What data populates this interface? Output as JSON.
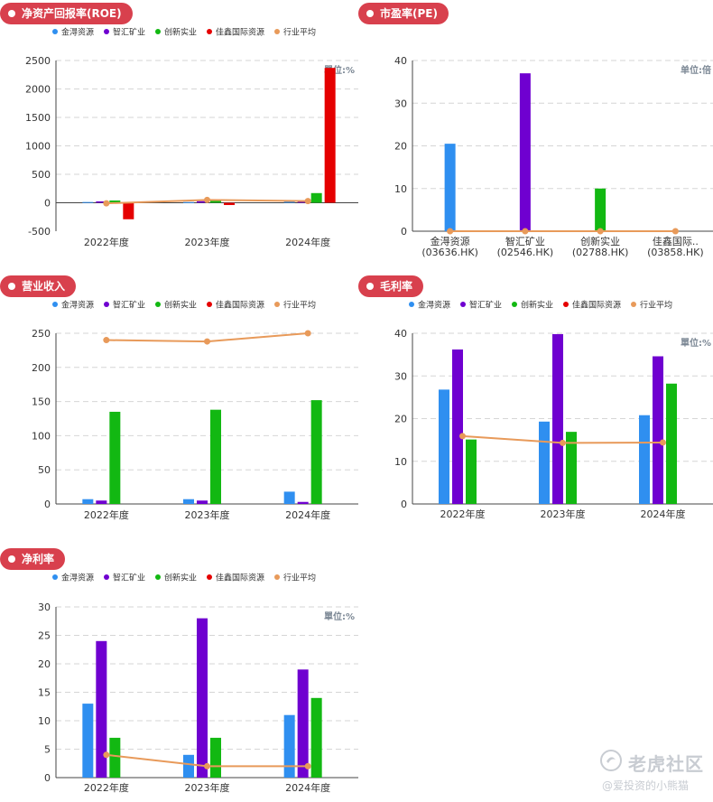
{
  "colors": {
    "金淂资源": "#2f8ff0",
    "智汇矿业": "#6f00d0",
    "创新实业": "#12b812",
    "佳鑫国际资源": "#e50000",
    "行业平均": "#e89a5a",
    "pill": "#d8404d"
  },
  "legend": [
    "金淂资源",
    "智汇矿业",
    "创新实业",
    "佳鑫国际资源",
    "行业平均"
  ],
  "charts": [
    {
      "title": "净资产回报率(ROE)",
      "chart_data": {
        "type": "bar",
        "categories": [
          "2022年度",
          "2023年度",
          "2024年度"
        ],
        "ylim": [
          -500,
          2500
        ],
        "yticks": [
          -500,
          0,
          500,
          1000,
          1500,
          2000,
          2500
        ],
        "unit_label": "單位:%",
        "series": [
          {
            "name": "金淂资源",
            "values": [
              13,
              12,
              20
            ]
          },
          {
            "name": "智汇矿业",
            "values": [
              24,
              28,
              19
            ]
          },
          {
            "name": "创新实业",
            "values": [
              40,
              35,
              170
            ]
          },
          {
            "name": "佳鑫国际资源",
            "values": [
              -290,
              -40,
              2370
            ]
          }
        ],
        "line": {
          "name": "行业平均",
          "values": [
            -10,
            50,
            30
          ]
        }
      }
    },
    {
      "title": "市盈率(PE)",
      "chart_data": {
        "type": "bar",
        "categories": [
          "金淂资源\n(03636.HK)",
          "智汇矿业\n(02546.HK)",
          "创新实业\n(02788.HK)",
          "佳鑫国际..\n(03858.HK)"
        ],
        "ylim": [
          0,
          40
        ],
        "yticks": [
          0,
          10,
          20,
          30,
          40
        ],
        "unit_label": "单位:倍",
        "per_category": true,
        "series": [
          {
            "name": "金淂资源",
            "values": [
              20.5,
              0,
              0,
              0
            ]
          },
          {
            "name": "智汇矿业",
            "values": [
              0,
              37,
              0,
              0
            ]
          },
          {
            "name": "创新实业",
            "values": [
              0,
              0,
              10,
              0
            ]
          },
          {
            "name": "佳鑫国际资源",
            "values": [
              0,
              0,
              0,
              0
            ]
          }
        ],
        "line": {
          "name": "行业平均",
          "values": [
            0,
            0,
            0,
            0
          ]
        }
      }
    },
    {
      "title": "营业收入",
      "chart_data": {
        "type": "bar",
        "categories": [
          "2022年度",
          "2023年度",
          "2024年度"
        ],
        "ylim": [
          0,
          250
        ],
        "yticks": [
          0,
          50,
          100,
          150,
          200,
          250
        ],
        "unit_label": "",
        "series": [
          {
            "name": "金淂资源",
            "values": [
              7,
              7,
              18
            ]
          },
          {
            "name": "智汇矿业",
            "values": [
              5,
              5,
              3
            ]
          },
          {
            "name": "创新实业",
            "values": [
              135,
              138,
              152
            ]
          },
          {
            "name": "佳鑫国际资源",
            "values": [
              0,
              0,
              0
            ]
          }
        ],
        "line": {
          "name": "行业平均",
          "values": [
            240,
            238,
            250
          ]
        }
      }
    },
    {
      "title": "毛利率",
      "chart_data": {
        "type": "bar",
        "categories": [
          "2022年度",
          "2023年度",
          "2024年度"
        ],
        "ylim": [
          0,
          40
        ],
        "yticks": [
          0,
          10,
          20,
          30,
          40
        ],
        "unit_label": "單位:%",
        "series": [
          {
            "name": "金淂资源",
            "values": [
              26.8,
              19.3,
              20.8
            ]
          },
          {
            "name": "智汇矿业",
            "values": [
              36.2,
              39.8,
              34.6
            ]
          },
          {
            "name": "创新实业",
            "values": [
              15.1,
              16.9,
              28.2
            ]
          },
          {
            "name": "佳鑫国际资源",
            "values": [
              0,
              0,
              0
            ]
          }
        ],
        "line": {
          "name": "行业平均",
          "values": [
            15.9,
            14.3,
            14.4
          ]
        }
      }
    },
    {
      "title": "净利率",
      "chart_data": {
        "type": "bar",
        "categories": [
          "2022年度",
          "2023年度",
          "2024年度"
        ],
        "ylim": [
          0,
          30
        ],
        "yticks": [
          0,
          5,
          10,
          15,
          20,
          25,
          30
        ],
        "unit_label": "單位:%",
        "series": [
          {
            "name": "金淂资源",
            "values": [
              13,
              4,
              11
            ]
          },
          {
            "name": "智汇矿业",
            "values": [
              24,
              28,
              19
            ]
          },
          {
            "name": "创新实业",
            "values": [
              7,
              7,
              14
            ]
          },
          {
            "name": "佳鑫国际资源",
            "values": [
              0,
              0,
              0
            ]
          }
        ],
        "line": {
          "name": "行业平均",
          "values": [
            4,
            2,
            2
          ]
        }
      }
    }
  ],
  "watermark": {
    "main": "老虎社区",
    "sub": "@爱投资的小熊猫"
  }
}
